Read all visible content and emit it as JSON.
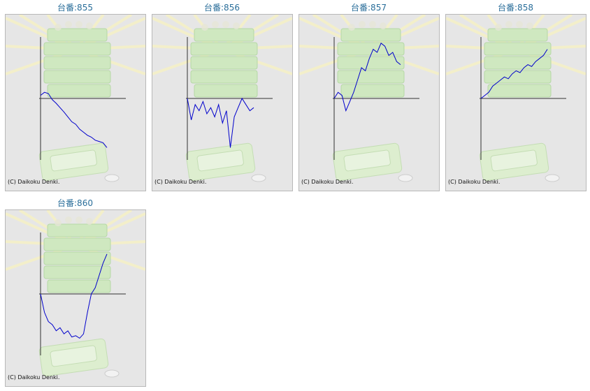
{
  "colors": {
    "title": "#2a6e9a",
    "line": "#0000cc",
    "axis": "#333333",
    "panel_bg": "#e6e6e6"
  },
  "copyright": "(C) Daikoku Denki.",
  "machines": [
    {
      "label": "台番:855",
      "trend": [
        0.05,
        0.1,
        0.08,
        -0.02,
        -0.08,
        -0.15,
        -0.22,
        -0.3,
        -0.38,
        -0.42,
        -0.5,
        -0.55,
        -0.6,
        -0.63,
        -0.68,
        -0.7,
        -0.72,
        -0.8
      ]
    },
    {
      "label": "台番:856",
      "trend": [
        0.0,
        -0.35,
        -0.1,
        -0.2,
        -0.05,
        -0.25,
        -0.15,
        -0.3,
        -0.1,
        -0.4,
        -0.2,
        -0.8,
        -0.3,
        -0.15,
        0.0,
        -0.1,
        -0.2,
        -0.15
      ]
    },
    {
      "label": "台番:857",
      "trend": [
        0.0,
        0.1,
        0.05,
        -0.2,
        -0.05,
        0.1,
        0.3,
        0.5,
        0.45,
        0.65,
        0.8,
        0.75,
        0.9,
        0.85,
        0.7,
        0.75,
        0.6,
        0.55
      ]
    },
    {
      "label": "台番:858",
      "trend": [
        0.0,
        0.05,
        0.1,
        0.2,
        0.25,
        0.3,
        0.35,
        0.32,
        0.4,
        0.45,
        0.42,
        0.5,
        0.55,
        0.52,
        0.6,
        0.65,
        0.7,
        0.8
      ]
    },
    {
      "label": "台番:860",
      "trend": [
        0.0,
        -0.3,
        -0.45,
        -0.5,
        -0.6,
        -0.55,
        -0.65,
        -0.6,
        -0.7,
        -0.68,
        -0.72,
        -0.65,
        -0.3,
        0.0,
        0.1,
        0.3,
        0.5,
        0.65
      ]
    }
  ]
}
